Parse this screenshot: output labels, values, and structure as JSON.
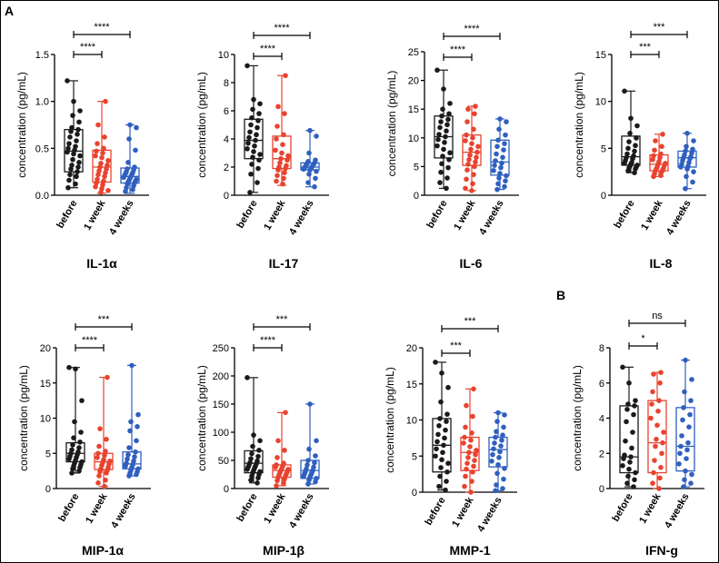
{
  "figure": {
    "panel_letters": [
      "A",
      "B"
    ]
  },
  "colors": {
    "before": "#1a1a1a",
    "1 week": "#e8432f",
    "4 weeks": "#2f5fbf"
  },
  "chart_data": [
    {
      "type": "box",
      "title": "IL-1α",
      "ylabel": "concentration (pg/mL)",
      "ylim": [
        0,
        1.5
      ],
      "yticks": [
        "0.0",
        "0.5",
        "1.0",
        "1.5"
      ],
      "ytick_values": [
        0,
        0.5,
        1.0,
        1.5
      ],
      "categories": [
        "before",
        "1 week",
        "4 weeks"
      ],
      "series": [
        {
          "min": 0.08,
          "q1": 0.25,
          "median": 0.47,
          "q3": 0.7,
          "max": 1.22,
          "points": [
            1.22,
            1.0,
            0.9,
            0.85,
            0.78,
            0.72,
            0.7,
            0.68,
            0.65,
            0.62,
            0.58,
            0.55,
            0.52,
            0.5,
            0.48,
            0.46,
            0.44,
            0.42,
            0.38,
            0.35,
            0.32,
            0.3,
            0.28,
            0.25,
            0.22,
            0.2,
            0.16,
            0.12,
            0.08
          ]
        },
        {
          "min": 0.02,
          "q1": 0.14,
          "median": 0.3,
          "q3": 0.48,
          "max": 1.0,
          "points": [
            1.0,
            0.75,
            0.62,
            0.55,
            0.5,
            0.47,
            0.45,
            0.42,
            0.4,
            0.37,
            0.34,
            0.32,
            0.3,
            0.28,
            0.26,
            0.24,
            0.22,
            0.2,
            0.17,
            0.15,
            0.13,
            0.11,
            0.09,
            0.07,
            0.05,
            0.03
          ]
        },
        {
          "min": 0.02,
          "q1": 0.13,
          "median": 0.2,
          "q3": 0.29,
          "max": 0.75,
          "points": [
            0.75,
            0.72,
            0.6,
            0.48,
            0.35,
            0.3,
            0.28,
            0.27,
            0.25,
            0.24,
            0.23,
            0.22,
            0.21,
            0.2,
            0.19,
            0.18,
            0.17,
            0.16,
            0.15,
            0.14,
            0.13,
            0.12,
            0.1,
            0.08,
            0.06,
            0.04
          ]
        }
      ],
      "comparisons": [
        {
          "pair": [
            0,
            1
          ],
          "label": "****"
        },
        {
          "pair": [
            0,
            2
          ],
          "label": "****"
        }
      ]
    },
    {
      "type": "box",
      "title": "IL-17",
      "ylabel": "concentration (pg/mL)",
      "ylim": [
        0,
        10
      ],
      "yticks": [
        "0",
        "2",
        "4",
        "6",
        "8",
        "10"
      ],
      "ytick_values": [
        0,
        2,
        4,
        6,
        8,
        10
      ],
      "categories": [
        "before",
        "1 week",
        "4 weeks"
      ],
      "series": [
        {
          "min": 0.2,
          "q1": 2.6,
          "median": 3.9,
          "q3": 5.4,
          "max": 9.2,
          "points": [
            9.2,
            6.8,
            6.5,
            6.1,
            5.8,
            5.5,
            5.3,
            5.0,
            4.8,
            4.5,
            4.3,
            4.1,
            3.9,
            3.7,
            3.5,
            3.3,
            3.1,
            2.9,
            2.7,
            2.5,
            2.2,
            1.9,
            1.5,
            0.9,
            0.2
          ]
        },
        {
          "min": 0.7,
          "q1": 1.9,
          "median": 2.6,
          "q3": 4.2,
          "max": 8.5,
          "points": [
            8.5,
            6.3,
            5.8,
            4.9,
            4.3,
            4.0,
            3.6,
            3.2,
            3.0,
            2.8,
            2.6,
            2.5,
            2.3,
            2.1,
            2.0,
            1.9,
            1.8,
            1.6,
            1.4,
            1.2,
            1.0,
            0.8
          ]
        },
        {
          "min": 0.6,
          "q1": 1.8,
          "median": 2.0,
          "q3": 2.3,
          "max": 4.6,
          "points": [
            4.6,
            4.2,
            3.0,
            2.5,
            2.4,
            2.3,
            2.25,
            2.2,
            2.15,
            2.1,
            2.05,
            2.0,
            1.95,
            1.9,
            1.85,
            1.8,
            1.7,
            1.5,
            1.2,
            0.9,
            0.6
          ]
        }
      ],
      "comparisons": [
        {
          "pair": [
            0,
            1
          ],
          "label": "****"
        },
        {
          "pair": [
            0,
            2
          ],
          "label": "****"
        }
      ]
    },
    {
      "type": "box",
      "title": "IL-6",
      "ylabel": "concentration (pg/mL)",
      "ylim": [
        0,
        25
      ],
      "yticks": [
        "0",
        "5",
        "10",
        "15",
        "20",
        "25"
      ],
      "ytick_values": [
        0,
        5,
        10,
        15,
        20,
        25
      ],
      "categories": [
        "before",
        "1 week",
        "4 weeks"
      ],
      "series": [
        {
          "min": 1.2,
          "q1": 6.5,
          "median": 10.2,
          "q3": 13.8,
          "max": 21.8,
          "points": [
            21.8,
            18.5,
            16.0,
            15.0,
            14.2,
            13.8,
            13.2,
            12.8,
            12.3,
            11.8,
            11.2,
            10.6,
            10.2,
            9.7,
            9.2,
            8.6,
            8.0,
            7.4,
            6.8,
            6.2,
            5.5,
            4.8,
            4.0,
            3.0,
            2.2,
            1.2
          ]
        },
        {
          "min": 0.8,
          "q1": 5.2,
          "median": 7.5,
          "q3": 10.5,
          "max": 15.5,
          "points": [
            15.5,
            15.0,
            14.2,
            12.8,
            11.5,
            10.5,
            10.0,
            9.5,
            9.0,
            8.5,
            8.0,
            7.5,
            7.0,
            6.6,
            6.2,
            5.8,
            5.4,
            5.0,
            4.4,
            3.6,
            2.8,
            2.0,
            1.2,
            0.8
          ]
        },
        {
          "min": 1.0,
          "q1": 3.5,
          "median": 5.8,
          "q3": 9.6,
          "max": 13.3,
          "points": [
            13.3,
            12.8,
            11.5,
            10.5,
            9.6,
            9.0,
            8.5,
            7.9,
            7.2,
            6.6,
            6.0,
            5.6,
            5.2,
            4.8,
            4.3,
            3.8,
            3.4,
            3.0,
            2.5,
            2.0,
            1.5,
            1.0
          ]
        }
      ],
      "comparisons": [
        {
          "pair": [
            0,
            1
          ],
          "label": "****"
        },
        {
          "pair": [
            0,
            2
          ],
          "label": "****"
        }
      ]
    },
    {
      "type": "box",
      "title": "IL-8",
      "ylabel": "concentration (pg/mL)",
      "ylim": [
        0,
        15
      ],
      "yticks": [
        "0",
        "5",
        "10",
        "15"
      ],
      "ytick_values": [
        0,
        5,
        10,
        15
      ],
      "categories": [
        "before",
        "1 week",
        "4 weeks"
      ],
      "series": [
        {
          "min": 2.4,
          "q1": 3.2,
          "median": 4.1,
          "q3": 6.3,
          "max": 11.1,
          "points": [
            11.1,
            8.2,
            7.4,
            6.6,
            6.1,
            5.7,
            5.3,
            5.0,
            4.7,
            4.4,
            4.2,
            4.0,
            3.9,
            3.7,
            3.5,
            3.4,
            3.3,
            3.2,
            3.1,
            3.0,
            2.9,
            2.8,
            2.6,
            2.4
          ]
        },
        {
          "min": 2.0,
          "q1": 2.6,
          "median": 3.3,
          "q3": 4.3,
          "max": 6.5,
          "points": [
            6.5,
            5.8,
            5.2,
            4.8,
            4.4,
            4.2,
            4.0,
            3.8,
            3.6,
            3.4,
            3.3,
            3.2,
            3.0,
            2.9,
            2.8,
            2.7,
            2.6,
            2.5,
            2.3,
            2.1,
            2.0
          ]
        },
        {
          "min": 0.7,
          "q1": 3.0,
          "median": 4.0,
          "q3": 4.7,
          "max": 6.6,
          "points": [
            6.6,
            5.8,
            5.2,
            4.9,
            4.7,
            4.5,
            4.3,
            4.1,
            4.0,
            3.9,
            3.7,
            3.5,
            3.3,
            3.1,
            3.0,
            2.8,
            2.5,
            2.0,
            1.4,
            0.7
          ]
        }
      ],
      "comparisons": [
        {
          "pair": [
            0,
            1
          ],
          "label": "***"
        },
        {
          "pair": [
            0,
            2
          ],
          "label": "***"
        }
      ]
    },
    {
      "type": "box",
      "title": "MIP-1α",
      "ylabel": "concentration (pg/mL)",
      "ylim": [
        0,
        20
      ],
      "yticks": [
        "0",
        "5",
        "10",
        "15",
        "20"
      ],
      "ytick_values": [
        0,
        5,
        10,
        15,
        20
      ],
      "categories": [
        "before",
        "1 week",
        "4 weeks"
      ],
      "series": [
        {
          "min": 2.2,
          "q1": 3.8,
          "median": 5.0,
          "q3": 6.5,
          "max": 17.2,
          "points": [
            17.2,
            17.0,
            12.5,
            9.5,
            8.0,
            7.2,
            6.6,
            6.2,
            5.8,
            5.5,
            5.2,
            5.0,
            4.8,
            4.6,
            4.4,
            4.2,
            4.0,
            3.8,
            3.6,
            3.4,
            3.2,
            3.0,
            2.8,
            2.5,
            2.2
          ]
        },
        {
          "min": 0.3,
          "q1": 2.7,
          "median": 3.8,
          "q3": 5.0,
          "max": 15.8,
          "points": [
            15.8,
            8.5,
            7.0,
            6.0,
            5.3,
            5.0,
            4.7,
            4.4,
            4.1,
            3.9,
            3.7,
            3.5,
            3.3,
            3.0,
            2.8,
            2.6,
            2.4,
            2.2,
            1.8,
            1.2,
            0.8,
            0.3
          ]
        },
        {
          "min": 1.8,
          "q1": 2.8,
          "median": 3.5,
          "q3": 5.2,
          "max": 17.5,
          "points": [
            17.5,
            10.5,
            9.5,
            8.8,
            8.2,
            6.8,
            5.8,
            5.2,
            4.8,
            4.5,
            4.2,
            3.9,
            3.6,
            3.4,
            3.2,
            3.0,
            2.8,
            2.6,
            2.4,
            2.2,
            2.0,
            1.8
          ]
        }
      ],
      "comparisons": [
        {
          "pair": [
            0,
            1
          ],
          "label": "****"
        },
        {
          "pair": [
            0,
            2
          ],
          "label": "***"
        }
      ]
    },
    {
      "type": "box",
      "title": "MIP-1β",
      "ylabel": "concentration (pg/mL)",
      "ylim": [
        0,
        250
      ],
      "yticks": [
        "0",
        "50",
        "100",
        "150",
        "200",
        "250"
      ],
      "ytick_values": [
        0,
        50,
        100,
        150,
        200,
        250
      ],
      "categories": [
        "before",
        "1 week",
        "4 weeks"
      ],
      "series": [
        {
          "min": 10,
          "q1": 28,
          "median": 45,
          "q3": 67,
          "max": 197,
          "points": [
            197,
            95,
            85,
            75,
            68,
            62,
            57,
            53,
            49,
            46,
            44,
            42,
            40,
            38,
            36,
            34,
            32,
            30,
            28,
            25,
            22,
            19,
            15,
            10
          ]
        },
        {
          "min": 5,
          "q1": 20,
          "median": 32,
          "q3": 42,
          "max": 135,
          "points": [
            135,
            85,
            68,
            55,
            45,
            42,
            40,
            38,
            36,
            34,
            32,
            30,
            28,
            26,
            24,
            22,
            20,
            17,
            14,
            10,
            5
          ]
        },
        {
          "min": 8,
          "q1": 18,
          "median": 32,
          "q3": 50,
          "max": 150,
          "points": [
            150,
            85,
            70,
            58,
            50,
            46,
            42,
            38,
            35,
            32,
            30,
            28,
            26,
            24,
            22,
            20,
            18,
            15,
            12,
            8
          ]
        }
      ],
      "comparisons": [
        {
          "pair": [
            0,
            1
          ],
          "label": "****"
        },
        {
          "pair": [
            0,
            2
          ],
          "label": "***"
        }
      ]
    },
    {
      "type": "box",
      "title": "MMP-1",
      "ylabel": "concentration (pg/mL)",
      "ylim": [
        0,
        20
      ],
      "yticks": [
        "0",
        "5",
        "10",
        "15",
        "20"
      ],
      "ytick_values": [
        0,
        5,
        10,
        15,
        20
      ],
      "categories": [
        "before",
        "1 week",
        "4 weeks"
      ],
      "series": [
        {
          "min": 0.3,
          "q1": 2.8,
          "median": 6.5,
          "q3": 10.2,
          "max": 18.0,
          "points": [
            18.0,
            16.5,
            14.5,
            12.5,
            10.8,
            10.2,
            9.8,
            9.2,
            8.6,
            8.0,
            7.5,
            7.0,
            6.5,
            6.0,
            5.5,
            5.0,
            4.5,
            4.0,
            3.4,
            2.8,
            2.2,
            1.5,
            0.8,
            0.3
          ]
        },
        {
          "min": 0.0,
          "q1": 3.0,
          "median": 5.5,
          "q3": 7.6,
          "max": 14.3,
          "points": [
            14.3,
            12.0,
            10.5,
            9.0,
            8.2,
            7.6,
            7.2,
            6.8,
            6.3,
            5.8,
            5.5,
            5.2,
            4.8,
            4.4,
            4.0,
            3.6,
            3.2,
            2.8,
            2.2,
            1.5,
            0.8,
            0.0
          ]
        },
        {
          "min": 0.2,
          "q1": 3.5,
          "median": 5.9,
          "q3": 7.6,
          "max": 11.0,
          "points": [
            11.0,
            10.7,
            9.8,
            9.0,
            8.4,
            7.9,
            7.6,
            7.2,
            6.8,
            6.4,
            6.0,
            5.6,
            5.2,
            4.8,
            4.3,
            3.8,
            3.3,
            2.6,
            1.8,
            1.0,
            0.5,
            0.2
          ]
        }
      ],
      "comparisons": [
        {
          "pair": [
            0,
            1
          ],
          "label": "***"
        },
        {
          "pair": [
            0,
            2
          ],
          "label": "***"
        }
      ]
    },
    {
      "type": "box",
      "title": "IFN-g",
      "ylabel": "concentration (pg/mL)",
      "ylim": [
        0,
        8
      ],
      "yticks": [
        "0",
        "2",
        "4",
        "6",
        "8"
      ],
      "ytick_values": [
        0,
        2,
        4,
        6,
        8
      ],
      "categories": [
        "before",
        "1 week",
        "4 weeks"
      ],
      "series": [
        {
          "min": 0.1,
          "q1": 0.9,
          "median": 1.8,
          "q3": 4.7,
          "max": 6.9,
          "points": [
            6.9,
            6.0,
            5.0,
            4.8,
            4.7,
            4.5,
            4.2,
            3.8,
            3.2,
            2.7,
            2.3,
            1.9,
            1.8,
            1.7,
            1.5,
            1.3,
            1.1,
            0.9,
            0.7,
            0.5,
            0.3,
            0.1
          ]
        },
        {
          "min": 0.0,
          "q1": 0.9,
          "median": 2.6,
          "q3": 5.0,
          "max": 6.6,
          "points": [
            6.6,
            6.5,
            6.0,
            5.5,
            5.0,
            4.8,
            4.4,
            4.0,
            3.6,
            3.2,
            2.8,
            2.6,
            2.4,
            2.0,
            1.6,
            1.2,
            0.9,
            0.6,
            0.3,
            0.0
          ]
        },
        {
          "min": 0.1,
          "q1": 1.0,
          "median": 2.4,
          "q3": 4.6,
          "max": 7.3,
          "points": [
            7.3,
            6.2,
            5.5,
            5.0,
            4.6,
            4.2,
            3.9,
            3.5,
            3.0,
            2.6,
            2.4,
            2.2,
            2.0,
            1.7,
            1.4,
            1.0,
            0.8,
            0.5,
            0.3,
            0.1
          ]
        }
      ],
      "comparisons": [
        {
          "pair": [
            0,
            1
          ],
          "label": "*"
        },
        {
          "pair": [
            0,
            2
          ],
          "label": "ns"
        }
      ]
    }
  ]
}
